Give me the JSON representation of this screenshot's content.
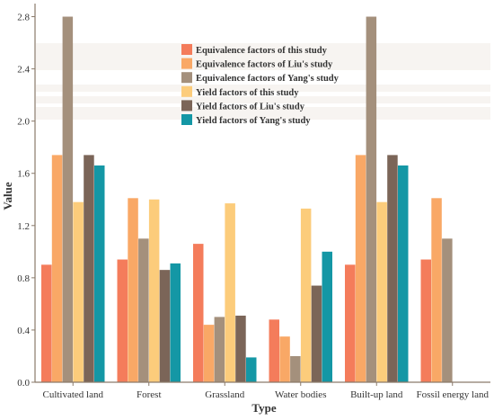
{
  "chart_data": {
    "type": "bar",
    "title": "",
    "xlabel": "Type",
    "ylabel": "Value",
    "ylim": [
      0,
      2.9
    ],
    "yticks": [
      "0.0",
      "0.4",
      "0.8",
      "1.2",
      "1.6",
      "2.0",
      "2.4",
      "2.8"
    ],
    "grid": false,
    "legend_position": "top-center",
    "categories": [
      "Cultivated land",
      "Forest",
      "Grassland",
      "Water bodies",
      "Built-up land",
      "Fossil energy land"
    ],
    "series": [
      {
        "name": "Equivalence factors of this study",
        "color": "#F47C5B",
        "values": [
          0.9,
          0.94,
          1.06,
          0.48,
          0.9,
          0.94
        ]
      },
      {
        "name": "Equivalence factors of Liu's study",
        "color": "#F9A866",
        "values": [
          1.74,
          1.41,
          0.44,
          0.35,
          1.74,
          1.41
        ]
      },
      {
        "name": "Equivalence factors of Yang's study",
        "color": "#A4907C",
        "values": [
          2.8,
          1.1,
          0.5,
          0.2,
          2.8,
          1.1
        ]
      },
      {
        "name": "Yield factors of this study",
        "color": "#FCCC7B",
        "values": [
          1.38,
          1.4,
          1.37,
          1.33,
          1.38,
          null
        ]
      },
      {
        "name": "Yield factors of Liu's study",
        "color": "#7B6558",
        "values": [
          1.74,
          0.86,
          0.51,
          0.74,
          1.74,
          null
        ]
      },
      {
        "name": "Yield factors of Yang's study",
        "color": "#1497A5",
        "values": [
          1.66,
          0.91,
          0.19,
          1.0,
          1.66,
          null
        ]
      }
    ]
  }
}
